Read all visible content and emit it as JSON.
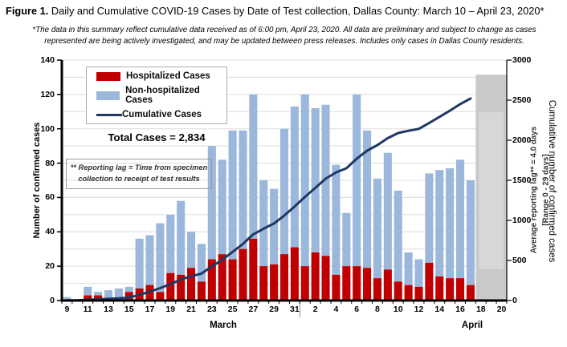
{
  "title": {
    "label": "Figure 1.",
    "text": " Daily and Cumulative COVID-19 Cases by Date of Test collection, Dallas County: March 10 – April 23, 2020*"
  },
  "subtitle": {
    "line1": "*The data in this summary reflect cumulative data received as of 6:00 pm, April 23, 2020.  All data are preliminary and subject to change as cases",
    "line2": "represented are being actively investigated, and may be updated between press releases. Includes only cases in Dallas County residents."
  },
  "legend": {
    "items": [
      {
        "label": "Hospitalized Cases",
        "color": "#C00000"
      },
      {
        "label": "Non-hospitalized Cases",
        "color": "#9BB7DB"
      },
      {
        "label": "Cumulative Cases",
        "color": "#1F3864"
      }
    ]
  },
  "annotations": {
    "total_cases": "Total Cases = 2,834",
    "note_line1": "** Reporting lag = Time from specimen",
    "note_line2": "collection to receipt of test results",
    "lag_line1": "Average reporting lag** = 4.0 days",
    "lag_line2": "[Range 0 - 29 days]"
  },
  "months": {
    "march": "March",
    "april": "April"
  },
  "chart_data": {
    "type": "bar",
    "subtype": "stacked bars with cumulative line",
    "dates": [
      "3/9",
      "3/10",
      "3/11",
      "3/12",
      "3/13",
      "3/14",
      "3/15",
      "3/16",
      "3/17",
      "3/18",
      "3/19",
      "3/20",
      "3/21",
      "3/22",
      "3/23",
      "3/24",
      "3/25",
      "3/26",
      "3/27",
      "3/28",
      "3/29",
      "3/30",
      "3/31",
      "4/1",
      "4/2",
      "4/3",
      "4/4",
      "4/5",
      "4/6",
      "4/7",
      "4/8",
      "4/9",
      "4/10",
      "4/11",
      "4/12",
      "4/13",
      "4/14",
      "4/15",
      "4/16",
      "4/17"
    ],
    "series": [
      {
        "name": "Hospitalized Cases",
        "color": "#C00000",
        "values": [
          0,
          0,
          3,
          3,
          0,
          0,
          5,
          7,
          9,
          5,
          16,
          15,
          19,
          11,
          24,
          27,
          24,
          30,
          36,
          20,
          21,
          27,
          31,
          20,
          28,
          26,
          15,
          20,
          20,
          19,
          13,
          18,
          11,
          9,
          8,
          22,
          14,
          13,
          13,
          9
        ]
      },
      {
        "name": "Non-hospitalized Cases",
        "color": "#9BB7DB",
        "values": [
          2,
          0,
          5,
          2,
          6,
          7,
          3,
          29,
          29,
          40,
          34,
          43,
          21,
          22,
          66,
          55,
          75,
          69,
          84,
          50,
          44,
          73,
          82,
          100,
          84,
          88,
          64,
          31,
          100,
          80,
          58,
          68,
          53,
          19,
          16,
          52,
          62,
          64,
          69,
          61
        ]
      },
      {
        "name": "Cumulative Cases",
        "color": "#1F3864",
        "axis": "right",
        "values": [
          2,
          2,
          10,
          15,
          21,
          28,
          36,
          72,
          110,
          155,
          205,
          263,
          303,
          336,
          426,
          508,
          607,
          706,
          826,
          896,
          961,
          1061,
          1174,
          1294,
          1406,
          1520,
          1599,
          1650,
          1770,
          1869,
          1940,
          2026,
          2090,
          2118,
          2142,
          2216,
          2292,
          2369,
          2451,
          2521
        ]
      }
    ],
    "x_tick_labels": [
      "9",
      "11",
      "13",
      "15",
      "17",
      "19",
      "21",
      "23",
      "25",
      "27",
      "29",
      "31",
      "2",
      "4",
      "6",
      "8",
      "10",
      "12",
      "14",
      "16",
      "18",
      "20"
    ],
    "x_axis_total_slots": 43,
    "march_slot_count": 23,
    "left_axis": {
      "title": "Number of confirmed cases",
      "ticks": [
        0,
        20,
        40,
        60,
        80,
        100,
        120,
        140
      ],
      "max": 140,
      "minor_grid_step": 10
    },
    "right_axis": {
      "title": "Cumulatitve number of confirmed cases",
      "ticks": [
        0,
        500,
        1000,
        1500,
        2000,
        2500,
        3000
      ],
      "max": 3000
    },
    "lag_region": {
      "start_slot": 40,
      "top_value": 131.5,
      "fill": "#C9C9C9",
      "inner_fill": "#D7D7D7"
    },
    "grid_color": "#DCDCDC",
    "legend_position": "top-left-inside",
    "gridlines": true
  }
}
